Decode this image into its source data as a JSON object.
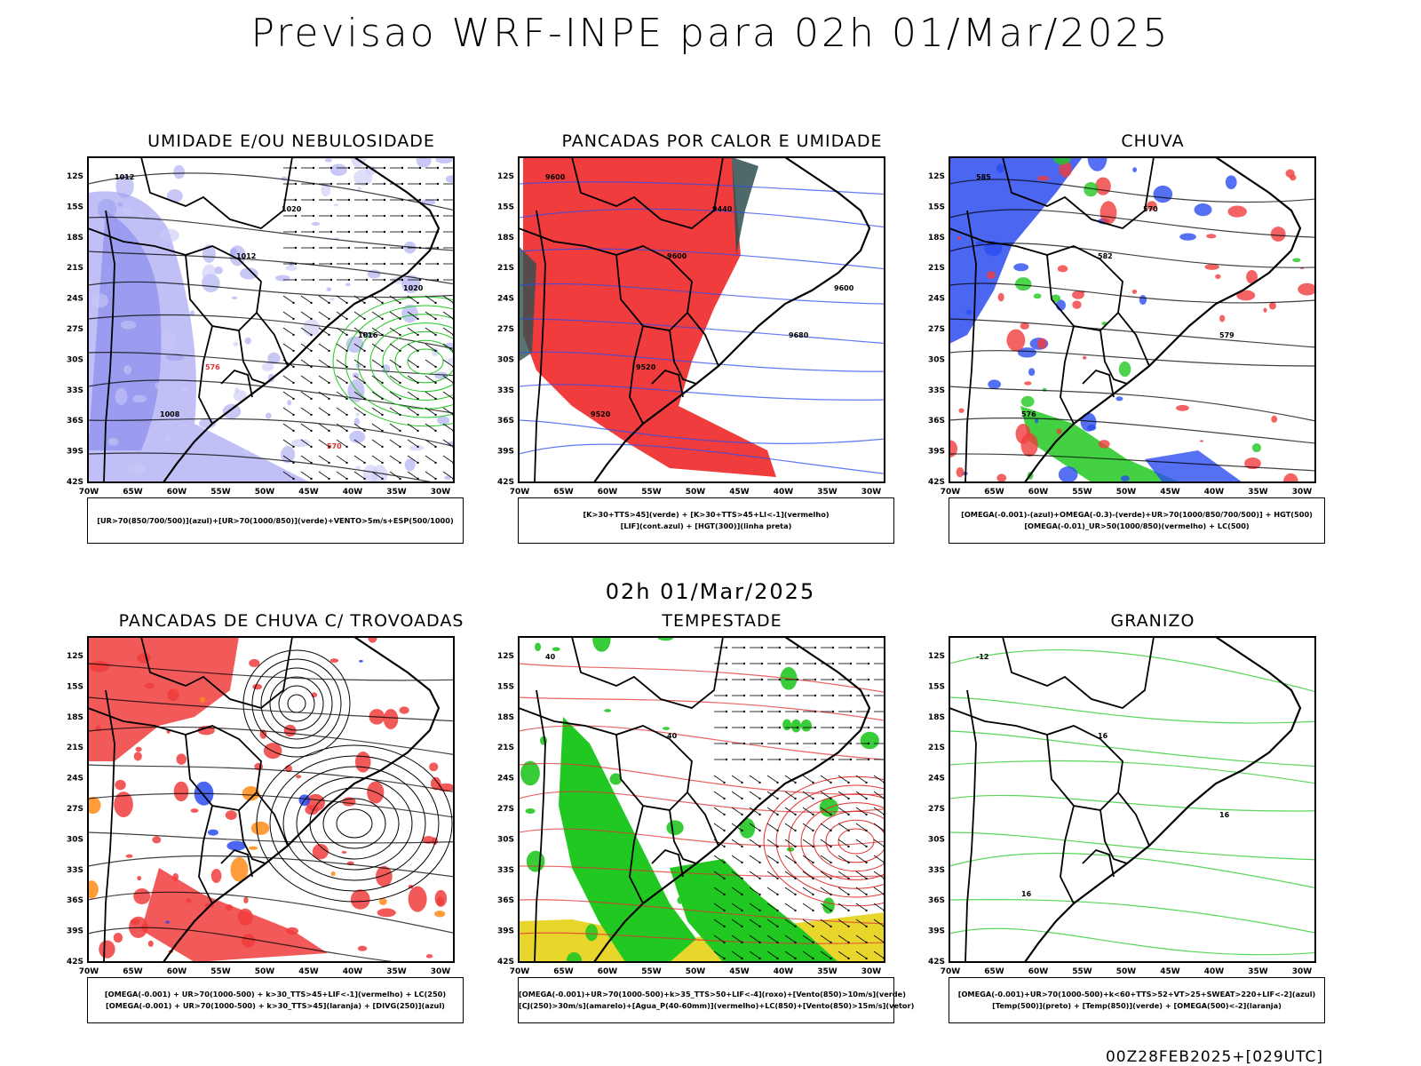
{
  "title": "Previsao WRF-INPE  para 02h 01/Mar/2025",
  "subtitle": "02h 01/Mar/2025",
  "footer": "00Z28FEB2025+[029UTC]",
  "axes": {
    "lat": [
      "12S",
      "15S",
      "18S",
      "21S",
      "24S",
      "27S",
      "30S",
      "33S",
      "36S",
      "39S",
      "42S"
    ],
    "lon": [
      "70W",
      "65W",
      "60W",
      "55W",
      "50W",
      "45W",
      "40W",
      "35W",
      "30W"
    ]
  },
  "panels": [
    {
      "title": "UMIDADE E/OU NEBULOSIDADE",
      "legend": [
        "[UR>70(850/700/500)](azul)+[UR>70(1000/850)](verde)+VENTO>5m/s+ESP(500/1000)"
      ],
      "contour_labels": [
        "1012",
        "1012",
        "1016",
        "1008",
        "1020",
        "1020",
        "576",
        "570"
      ]
    },
    {
      "title": "PANCADAS POR CALOR E UMIDADE",
      "legend": [
        "[K>30+TTS>45](verde) + [K>30+TTS>45+LI<-1](vermelho)",
        "[LIF](cont.azul) + [HGT(300)](linha preta)"
      ],
      "contour_labels": [
        "9600",
        "9600",
        "9680",
        "9520",
        "9440",
        "9600",
        "9520"
      ]
    },
    {
      "title": "CHUVA",
      "legend": [
        "[OMEGA(-0.001)-(azul)+OMEGA(-0.3)-(verde)+UR>70(1000/850/700/500)] + HGT(500)",
        "[OMEGA(-0.01)_UR>50(1000/850)(vermelho) + LC(500)"
      ],
      "contour_labels": [
        "585",
        "582",
        "579",
        "576",
        "570"
      ]
    },
    {
      "title": "PANCADAS DE CHUVA C/ TROVOADAS",
      "legend": [
        "[OMEGA(-0.001) + UR>70(1000-500) + k>30_TTS>45+LIF<-1](vermelho) + LC(250)",
        "[OMEGA(-0.001) + UR>70(1000-500) + k>30_TTS>45](laranja) + [DIVG(250)](azul)"
      ],
      "contour_labels": []
    },
    {
      "title": "TEMPESTADE",
      "legend": [
        "[OMEGA(-0.001)+UR>70(1000-500)+k>35_TTS>50+LIF<-4](roxo)+[Vento(850)>10m/s](verde)",
        "[CJ(250)>30m/s](amarelo)+[Agua_P(40-60mm)](vermelho)+LC(850)+[Vento(850)>15m/s](vetor)"
      ],
      "contour_labels": [
        "40",
        "40"
      ]
    },
    {
      "title": "GRANIZO",
      "legend": [
        "[OMEGA(-0.001)+UR>70(1000-500)+k<60+TTS>52+VT>25+SWEAT>220+LIF<-2](azul)",
        "[Temp(500)](preto) + [Temp(850)](verde) + [OMEGA(500)<-2](laranja)"
      ],
      "contour_labels": [
        "-12",
        "16",
        "16",
        "16"
      ]
    }
  ]
}
